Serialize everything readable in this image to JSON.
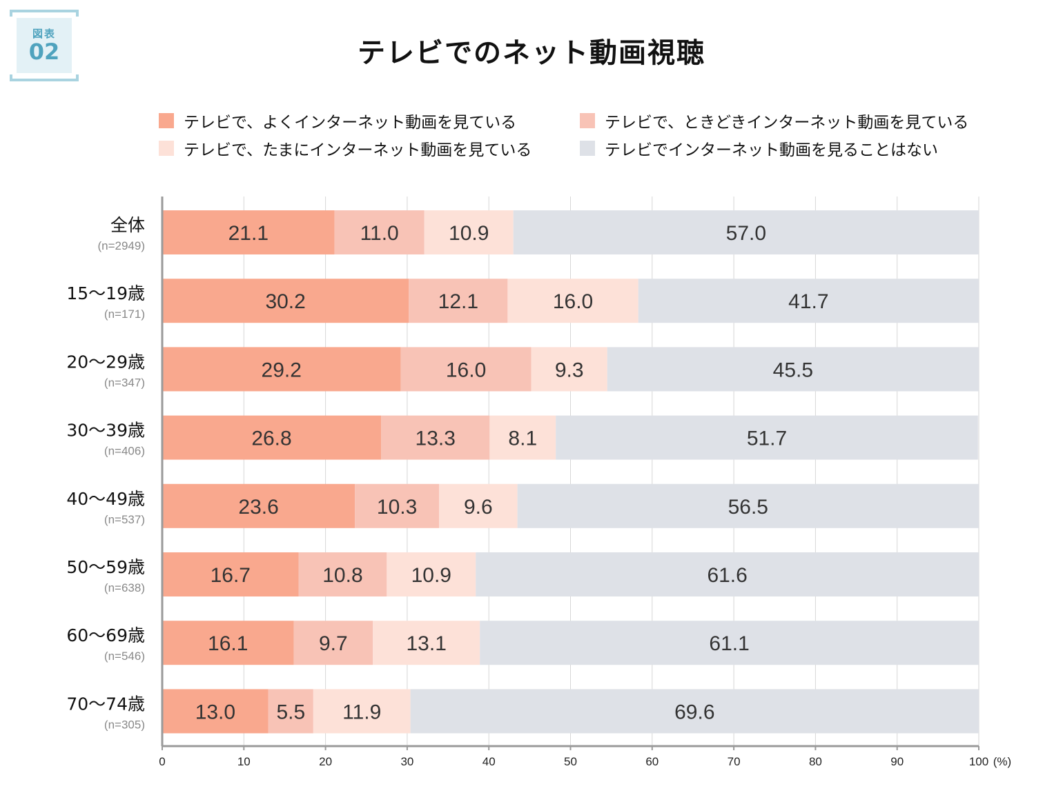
{
  "badge": {
    "label": "図表",
    "number": "02"
  },
  "title": "テレビでのネット動画視聴",
  "legend": [
    {
      "label": "テレビで、よくインターネット動画を見ている",
      "color": "#f9a88e"
    },
    {
      "label": "テレビで、ときどきインターネット動画を見ている",
      "color": "#f8c3b6"
    },
    {
      "label": "テレビで、たまにインターネット動画を見ている",
      "color": "#fde1d8"
    },
    {
      "label": "テレビでインターネット動画を見ることはない",
      "color": "#dee1e7"
    }
  ],
  "chart_data": {
    "type": "bar",
    "orientation": "horizontal",
    "stacked": true,
    "categories": [
      "全体",
      "15〜19歳",
      "20〜29歳",
      "30〜39歳",
      "40〜49歳",
      "50〜59歳",
      "60〜69歳",
      "70〜74歳"
    ],
    "sample_sizes": [
      "(n=2949)",
      "(n=171)",
      "(n=347)",
      "(n=406)",
      "(n=537)",
      "(n=638)",
      "(n=546)",
      "(n=305)"
    ],
    "series": [
      {
        "name": "テレビで、よくインターネット動画を見ている",
        "color": "#f9a88e",
        "values": [
          21.1,
          30.2,
          29.2,
          26.8,
          23.6,
          16.7,
          16.1,
          13.0
        ]
      },
      {
        "name": "テレビで、ときどきインターネット動画を見ている",
        "color": "#f8c3b6",
        "values": [
          11.0,
          12.1,
          16.0,
          13.3,
          10.3,
          10.8,
          9.7,
          5.5
        ]
      },
      {
        "name": "テレビで、たまにインターネット動画を見ている",
        "color": "#fde1d8",
        "values": [
          10.9,
          16.0,
          9.3,
          8.1,
          9.6,
          10.9,
          13.1,
          11.9
        ]
      },
      {
        "name": "テレビでインターネット動画を見ることはない",
        "color": "#dee1e7",
        "values": [
          57.0,
          41.7,
          45.5,
          51.7,
          56.5,
          61.6,
          61.1,
          69.6
        ]
      }
    ],
    "xlim": [
      0,
      100
    ],
    "xticks": [
      "0",
      "10",
      "20",
      "30",
      "40",
      "50",
      "60",
      "70",
      "80",
      "90",
      "100"
    ],
    "unit": "(%)",
    "grid": true
  }
}
